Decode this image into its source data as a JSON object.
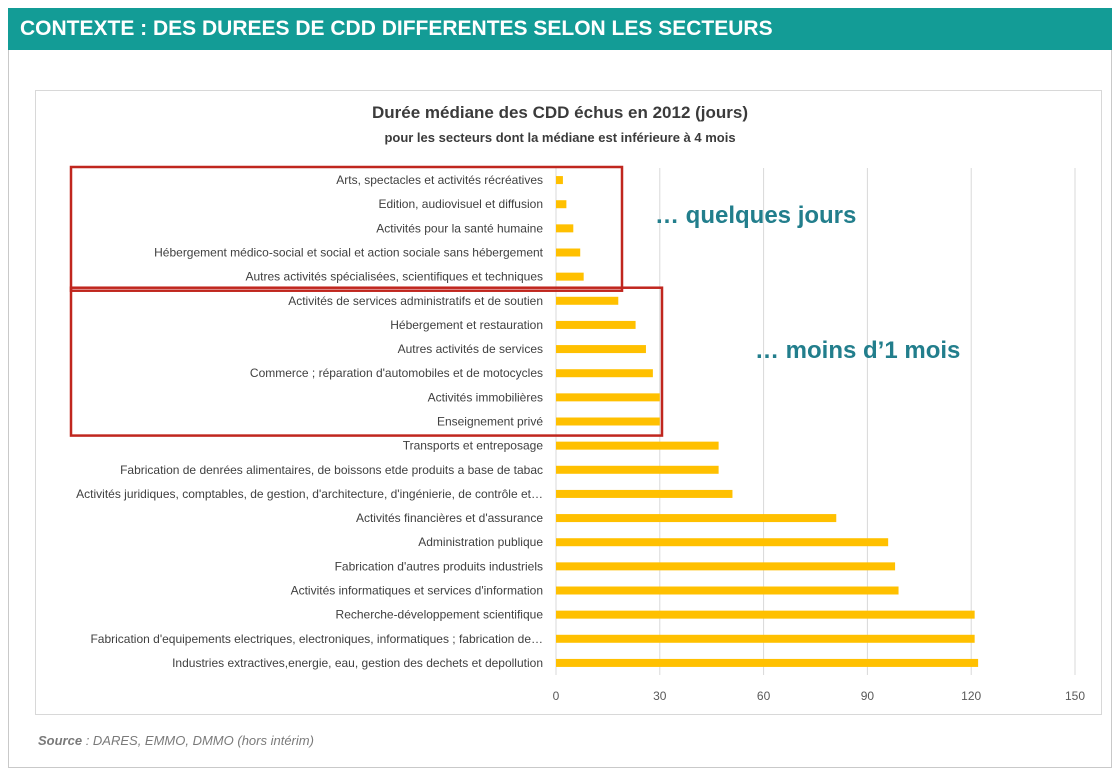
{
  "header": {
    "title": "CONTEXTE : DES DUREES DE CDD DIFFERENTES SELON LES SECTEURS"
  },
  "annotations": {
    "few_days": "… quelques jours",
    "less_than_month": "… moins d’1 mois"
  },
  "source": {
    "label": "Source",
    "text": " : DARES, EMMO, DMMO  (hors intérim)"
  },
  "colors": {
    "banner": "#139c96",
    "bar": "#ffc000",
    "highlight_box": "#c0261e",
    "annotation": "#227e8c"
  },
  "chart_data": {
    "type": "bar",
    "orientation": "horizontal",
    "title": "Durée médiane des CDD échus en 2012 (jours)",
    "subtitle": "pour les secteurs dont la médiane est inférieure à 4 mois",
    "xlim": [
      0,
      150
    ],
    "xticks": [
      0,
      30,
      60,
      90,
      120,
      150
    ],
    "grid": true,
    "categories": [
      "Arts, spectacles et activités récréatives",
      "Edition, audiovisuel et diffusion",
      "Activités pour la santé humaine",
      "Hébergement médico-social et social et action sociale sans hébergement",
      "Autres activités spécialisées, scientifiques et techniques",
      "Activités de services administratifs et de soutien",
      "Hébergement et restauration",
      "Autres activités de services",
      "Commerce ; réparation d'automobiles et de motocycles",
      "Activités immobilières",
      "Enseignement privé",
      "Transports et entreposage",
      "Fabrication de denrées alimentaires, de boissons etde produits a base de tabac",
      "Activités juridiques, comptables, de gestion, d'architecture, d'ingénierie, de contrôle et…",
      "Activités financières et d'assurance",
      "Administration publique",
      "Fabrication d'autres produits industriels",
      "Activités informatiques et services d'information",
      "Recherche-développement scientifique",
      "Fabrication d'equipements electriques, electroniques, informatiques ; fabrication de…",
      "Industries extractives,energie, eau, gestion des dechets et depollution"
    ],
    "values": [
      2,
      3,
      5,
      7,
      8,
      18,
      23,
      26,
      28,
      30,
      30,
      47,
      47,
      51,
      81,
      96,
      98,
      99,
      121,
      121,
      122
    ],
    "highlight_groups": [
      {
        "from_index": 0,
        "to_index": 4
      },
      {
        "from_index": 5,
        "to_index": 10
      }
    ]
  }
}
